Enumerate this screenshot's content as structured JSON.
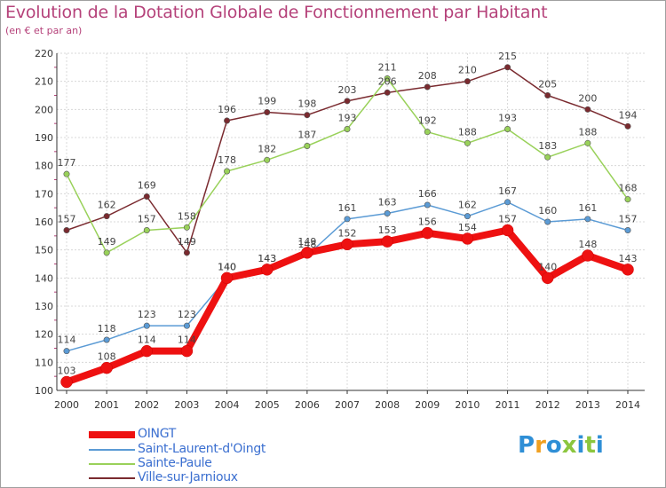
{
  "chart_data": {
    "type": "line",
    "title": "Evolution de la Dotation Globale de Fonctionnement par Habitant",
    "subtitle": "(en € et par an)",
    "x": [
      "2000",
      "2001",
      "2002",
      "2003",
      "2004",
      "2005",
      "2006",
      "2007",
      "2008",
      "2009",
      "2010",
      "2011",
      "2012",
      "2013",
      "2014"
    ],
    "y_ticks": [
      "100",
      "110",
      "120",
      "130",
      "140",
      "150",
      "160",
      "170",
      "180",
      "190",
      "200",
      "210",
      "220"
    ],
    "ylim": [
      100,
      220
    ],
    "grid": true,
    "legend_position": "bottom-left",
    "series": [
      {
        "name": "OINGT",
        "color": "#ee1111",
        "values": [
          103,
          108,
          114,
          114,
          140,
          143,
          149,
          152,
          153,
          156,
          154,
          157,
          140,
          148,
          143
        ]
      },
      {
        "name": "Saint-Laurent-d'Oingt",
        "color": "#5b9bd5",
        "values": [
          114,
          118,
          123,
          123,
          140,
          143,
          148,
          161,
          163,
          166,
          162,
          167,
          160,
          161,
          157
        ]
      },
      {
        "name": "Sainte-Paule",
        "color": "#99d15a",
        "values": [
          177,
          149,
          157,
          158,
          178,
          182,
          187,
          193,
          211,
          192,
          188,
          193,
          183,
          188,
          168
        ]
      },
      {
        "name": "Ville-sur-Jarnioux",
        "color": "#7a2a2f",
        "values": [
          157,
          162,
          169,
          149,
          196,
          199,
          198,
          203,
          206,
          208,
          210,
          215,
          205,
          200,
          194
        ]
      }
    ]
  },
  "logo": {
    "letters": [
      "P",
      "r",
      "o",
      "x",
      "i",
      "t",
      "i"
    ],
    "colors": [
      "#2f8fd6",
      "#f0a020",
      "#2f8fd6",
      "#8cc63f",
      "#2f8fd6",
      "#8cc63f",
      "#2f8fd6"
    ]
  }
}
